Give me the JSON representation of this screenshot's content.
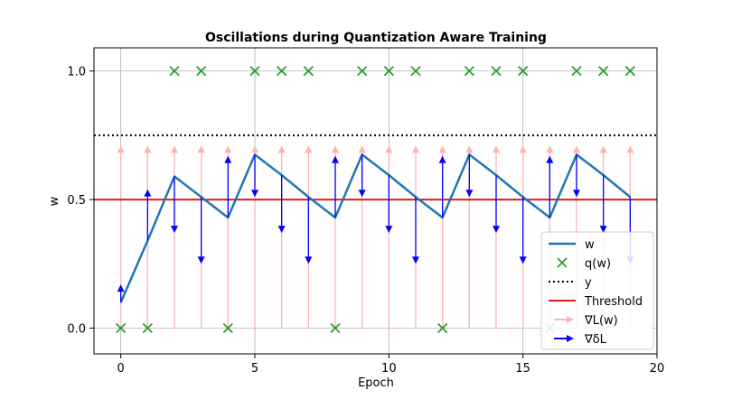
{
  "chart_data": {
    "type": "line",
    "title": "Oscillations during Quantization Aware Training",
    "xlabel": "Epoch",
    "ylabel": "w",
    "xlim": [
      -1.0,
      20.0
    ],
    "ylim": [
      -0.1,
      1.09
    ],
    "x_ticks": [
      0,
      5,
      10,
      15,
      20
    ],
    "x_tick_labels": [
      "0",
      "5",
      "10",
      "15",
      "20"
    ],
    "y_ticks": [
      0.0,
      0.5,
      1.0
    ],
    "y_tick_labels": [
      "0.0",
      "0.5",
      "1.0"
    ],
    "grid": true,
    "legend_position": "lower-right",
    "x": [
      0,
      1,
      2,
      3,
      4,
      5,
      6,
      7,
      8,
      9,
      10,
      11,
      12,
      13,
      14,
      15,
      16,
      17,
      18,
      19
    ],
    "series": [
      {
        "name": "w",
        "kind": "line",
        "color": "#1f77b4",
        "values": [
          0.1,
          0.34,
          0.59,
          0.51,
          0.43,
          0.675,
          0.595,
          0.51,
          0.43,
          0.675,
          0.595,
          0.51,
          0.43,
          0.675,
          0.595,
          0.51,
          0.43,
          0.675,
          0.595,
          0.51
        ]
      },
      {
        "name": "q(w)",
        "kind": "scatter",
        "marker": "x",
        "color": "#2ca02c",
        "values": [
          0,
          0,
          1,
          1,
          0,
          1,
          1,
          1,
          0,
          1,
          1,
          1,
          0,
          1,
          1,
          1,
          0,
          1,
          1,
          1
        ]
      },
      {
        "name": "y",
        "kind": "hline",
        "style": "dotted",
        "color": "#000000",
        "value": 0.75
      },
      {
        "name": "Threshold",
        "kind": "hline",
        "color": "#e41a1c",
        "value": 0.5
      },
      {
        "name": "∇L(w)",
        "kind": "arrows",
        "color": "#ffb3b3",
        "base_y": 0.0,
        "tip_y": 0.71
      },
      {
        "name": "∇δL",
        "kind": "arrows",
        "color": "#0000ff",
        "tips": [
          0.17,
          0.54,
          0.37,
          0.25,
          0.67,
          0.51,
          0.37,
          0.25,
          0.67,
          0.51,
          0.37,
          0.25,
          0.67,
          0.51,
          0.37,
          0.25,
          0.67,
          0.51,
          0.37,
          0.25
        ]
      }
    ]
  }
}
